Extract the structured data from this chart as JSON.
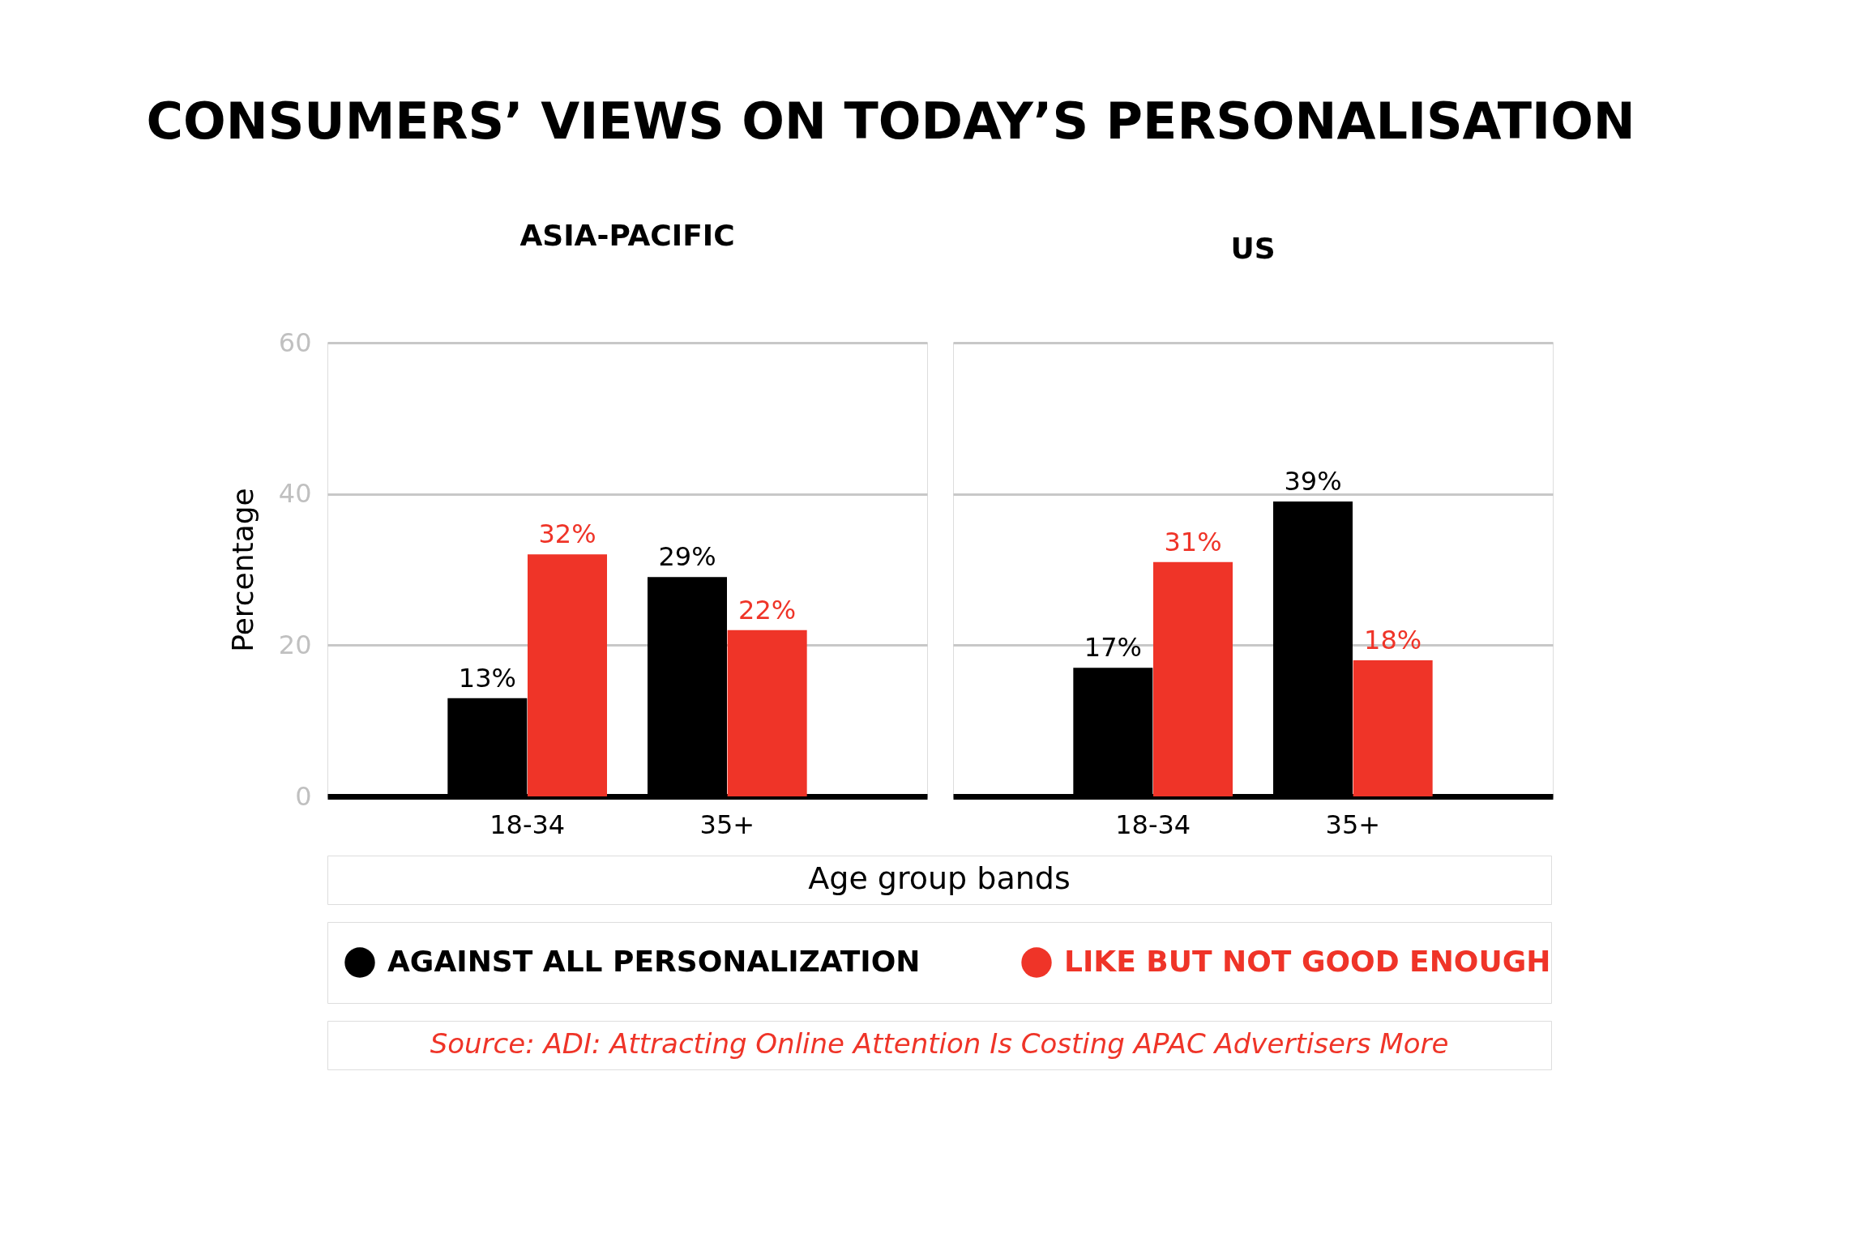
{
  "chart_data": [
    {
      "type": "bar",
      "title": "CONSUMERS’ VIEWS ON TODAY’S PERSONALISATION",
      "subtitle": "ASIA-PACIFIC",
      "ylabel": "Percentage",
      "xlabel": "Age group bands",
      "categories": [
        "18-34",
        "35+"
      ],
      "ylim": [
        0,
        60
      ],
      "yticks": [
        0,
        20,
        40,
        60
      ],
      "grid": "y",
      "legend": "bottom",
      "series": [
        {
          "name": "AGAINST ALL PERSONALIZATION",
          "color": "#000000",
          "values": [
            13,
            29
          ],
          "value_labels": [
            "13%",
            "29%"
          ]
        },
        {
          "name": "LIKE BUT NOT GOOD ENOUGH",
          "color": "#ef3428",
          "values": [
            32,
            22
          ],
          "value_labels": [
            "32%",
            "22%"
          ]
        }
      ],
      "annotations": [
        "Source: ADI: Attracting Online Attention Is Costing APAC Advertisers More"
      ]
    },
    {
      "type": "bar",
      "subtitle": "US",
      "categories": [
        "18-34",
        "35+"
      ],
      "ylim": [
        0,
        60
      ],
      "yticks": [
        0,
        20,
        40,
        60
      ],
      "grid": "y",
      "tick_labels": "x",
      "series": [
        {
          "color": "#000000",
          "values": [
            17,
            39
          ],
          "value_labels": [
            "17%",
            "39%"
          ]
        },
        {
          "color": "#ef3428",
          "values": [
            31,
            18
          ],
          "value_labels": [
            "31%",
            "18%"
          ]
        }
      ]
    }
  ]
}
